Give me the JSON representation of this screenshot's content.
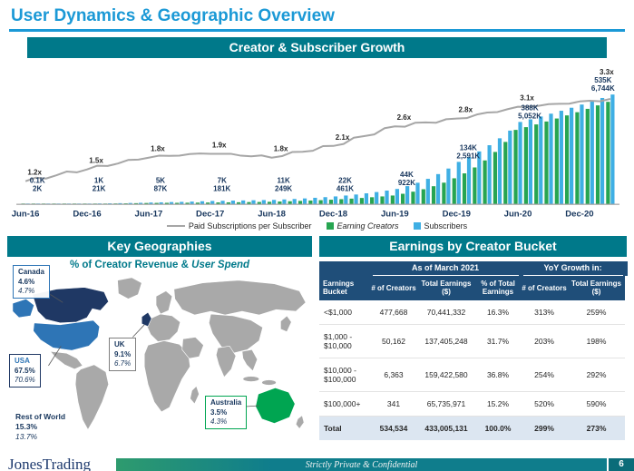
{
  "slide": {
    "title": "User Dynamics & Geographic Overview",
    "footer": {
      "logo_text": "JonesTrading",
      "confidential_text": "Strictly Private & Confidential",
      "page_number": "6"
    }
  },
  "growth_section": {
    "banner": "Creator & Subscriber Growth",
    "legend": {
      "line_label": "Paid Subscriptions per Subscriber",
      "creators_label": "Earning Creators",
      "subscribers_label": "Subscribers"
    }
  },
  "geo_section": {
    "banner": "Key Geographies",
    "subtitle_main": "% of Creator Revenue & ",
    "subtitle_italic": "User Spend",
    "callouts": [
      {
        "name": "Canada",
        "revenue": "4.6%",
        "spend": "4.7%"
      },
      {
        "name": "USA",
        "revenue": "67.5%",
        "spend": "70.6%"
      },
      {
        "name": "UK",
        "revenue": "9.1%",
        "spend": "6.7%"
      },
      {
        "name": "Australia",
        "revenue": "3.5%",
        "spend": "4.3%"
      },
      {
        "name": "Rest of World",
        "revenue": "15.3%",
        "spend": "13.7%"
      }
    ]
  },
  "earnings_section": {
    "banner": "Earnings by Creator Bucket"
  },
  "chart_data": [
    {
      "type": "bar",
      "subtype": "combo-bar-line-monthly",
      "title": "Creator & Subscriber Growth",
      "x_tick_labels": [
        "Jun-16",
        "Dec-16",
        "Jun-17",
        "Dec-17",
        "Jun-18",
        "Dec-18",
        "Jun-19",
        "Dec-19",
        "Jun-20",
        "Dec-20"
      ],
      "anchor_points": {
        "months_from_start": [
          0,
          6,
          12,
          18,
          24,
          30,
          36,
          42,
          48,
          57
        ],
        "earning_creators_thousands": [
          0.1,
          1,
          5,
          7,
          11,
          22,
          44,
          134,
          388,
          535
        ],
        "subscribers_thousands": [
          2,
          21,
          87,
          181,
          249,
          461,
          922,
          2591,
          5052,
          6744
        ],
        "paid_subscriptions_per_subscriber": [
          1.2,
          1.5,
          1.8,
          1.9,
          1.8,
          2.1,
          2.6,
          2.8,
          3.1,
          3.3
        ],
        "earning_creators_labels": [
          "0.1K",
          "1K",
          "5K",
          "7K",
          "11K",
          "22K",
          "44K",
          "134K",
          "388K",
          "535K"
        ],
        "subscribers_labels": [
          "2K",
          "21K",
          "87K",
          "181K",
          "249K",
          "461K",
          "922K",
          "2,591K",
          "5,052K",
          "6,744K"
        ],
        "line_labels": [
          "1.2x",
          "1.5x",
          "1.8x",
          "1.9x",
          "1.8x",
          "2.1x",
          "2.6x",
          "2.8x",
          "3.1x",
          "3.3x"
        ]
      },
      "series": [
        {
          "name": "Earning Creators",
          "type": "bar",
          "color": "#27A551"
        },
        {
          "name": "Subscribers",
          "type": "bar",
          "color": "#3FAFE4"
        },
        {
          "name": "Paid Subscriptions per Subscriber",
          "type": "line",
          "color": "#A6A6A6"
        }
      ],
      "legend_position": "bottom",
      "grid": false
    },
    {
      "type": "heatmap",
      "subtype": "world-map-highlight",
      "title": "% of Creator Revenue & User Spend",
      "regions": [
        {
          "name": "Canada",
          "creator_revenue_pct": 4.6,
          "user_spend_pct": 4.7
        },
        {
          "name": "USA",
          "creator_revenue_pct": 67.5,
          "user_spend_pct": 70.6
        },
        {
          "name": "UK",
          "creator_revenue_pct": 9.1,
          "user_spend_pct": 6.7
        },
        {
          "name": "Australia",
          "creator_revenue_pct": 3.5,
          "user_spend_pct": 4.3
        },
        {
          "name": "Rest of World",
          "creator_revenue_pct": 15.3,
          "user_spend_pct": 13.7
        }
      ]
    },
    {
      "type": "table",
      "title": "Earnings by Creator Bucket",
      "column_groups": [
        {
          "label": "",
          "span": 1
        },
        {
          "label": "As of March 2021",
          "span": 3
        },
        {
          "label": "YoY Growth in:",
          "span": 2
        }
      ],
      "columns": [
        "Earnings Bucket",
        "# of Creators",
        "Total Earnings ($)",
        "% of Total Earnings",
        "# of Creators",
        "Total Earnings ($)"
      ],
      "rows": [
        [
          "<$1,000",
          "477,668",
          "70,441,332",
          "16.3%",
          "313%",
          "259%"
        ],
        [
          "$1,000 - $10,000",
          "50,162",
          "137,405,248",
          "31.7%",
          "203%",
          "198%"
        ],
        [
          "$10,000 - $100,000",
          "6,363",
          "159,422,580",
          "36.8%",
          "254%",
          "292%"
        ],
        [
          "$100,000+",
          "341",
          "65,735,971",
          "15.2%",
          "520%",
          "590%"
        ]
      ],
      "total_row": [
        "Total",
        "534,534",
        "433,005,131",
        "100.0%",
        "299%",
        "273%"
      ]
    }
  ],
  "colors": {
    "title_blue": "#1B99D6",
    "banner_teal": "#00798A",
    "table_navy": "#1F4E79",
    "bar_green": "#27A551",
    "bar_blue": "#3FAFE4",
    "line_gray": "#A6A6A6",
    "map_gray": "#A9A9A9",
    "canada_navy": "#1F3864",
    "usa_blue": "#2E75B6",
    "australia_green": "#00A551",
    "footer_teal": "#0F7D8C",
    "total_row_bg": "#DCE6F1"
  }
}
